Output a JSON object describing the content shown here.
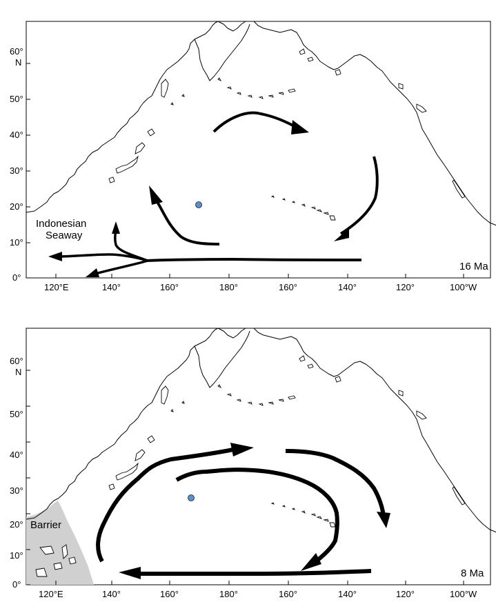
{
  "maps": [
    {
      "age": "16 Ma",
      "label_lines": [
        "Indonesian",
        "Seaway"
      ],
      "lat_ticks": [
        "0°",
        "10°",
        "20°",
        "30°",
        "40°",
        "50°",
        "60°"
      ],
      "lat_hemisphere": "N",
      "lon_ticks": [
        "120°E",
        "140°",
        "160°",
        "180°",
        "160°",
        "140°",
        "120°",
        "100°W"
      ]
    },
    {
      "age": "8 Ma",
      "label": "Barrier",
      "lat_ticks": [
        "0°",
        "10°",
        "20°",
        "30°",
        "40°",
        "50°",
        "60°"
      ],
      "lat_hemisphere": "N",
      "lon_ticks": [
        "120°E",
        "140°",
        "160°",
        "180°",
        "160°",
        "140°",
        "120°",
        "100°W"
      ]
    }
  ],
  "colors": {
    "site_marker": "#5b8fd0",
    "barrier_fill": "#d0d0d0",
    "arrows": "#000000"
  }
}
